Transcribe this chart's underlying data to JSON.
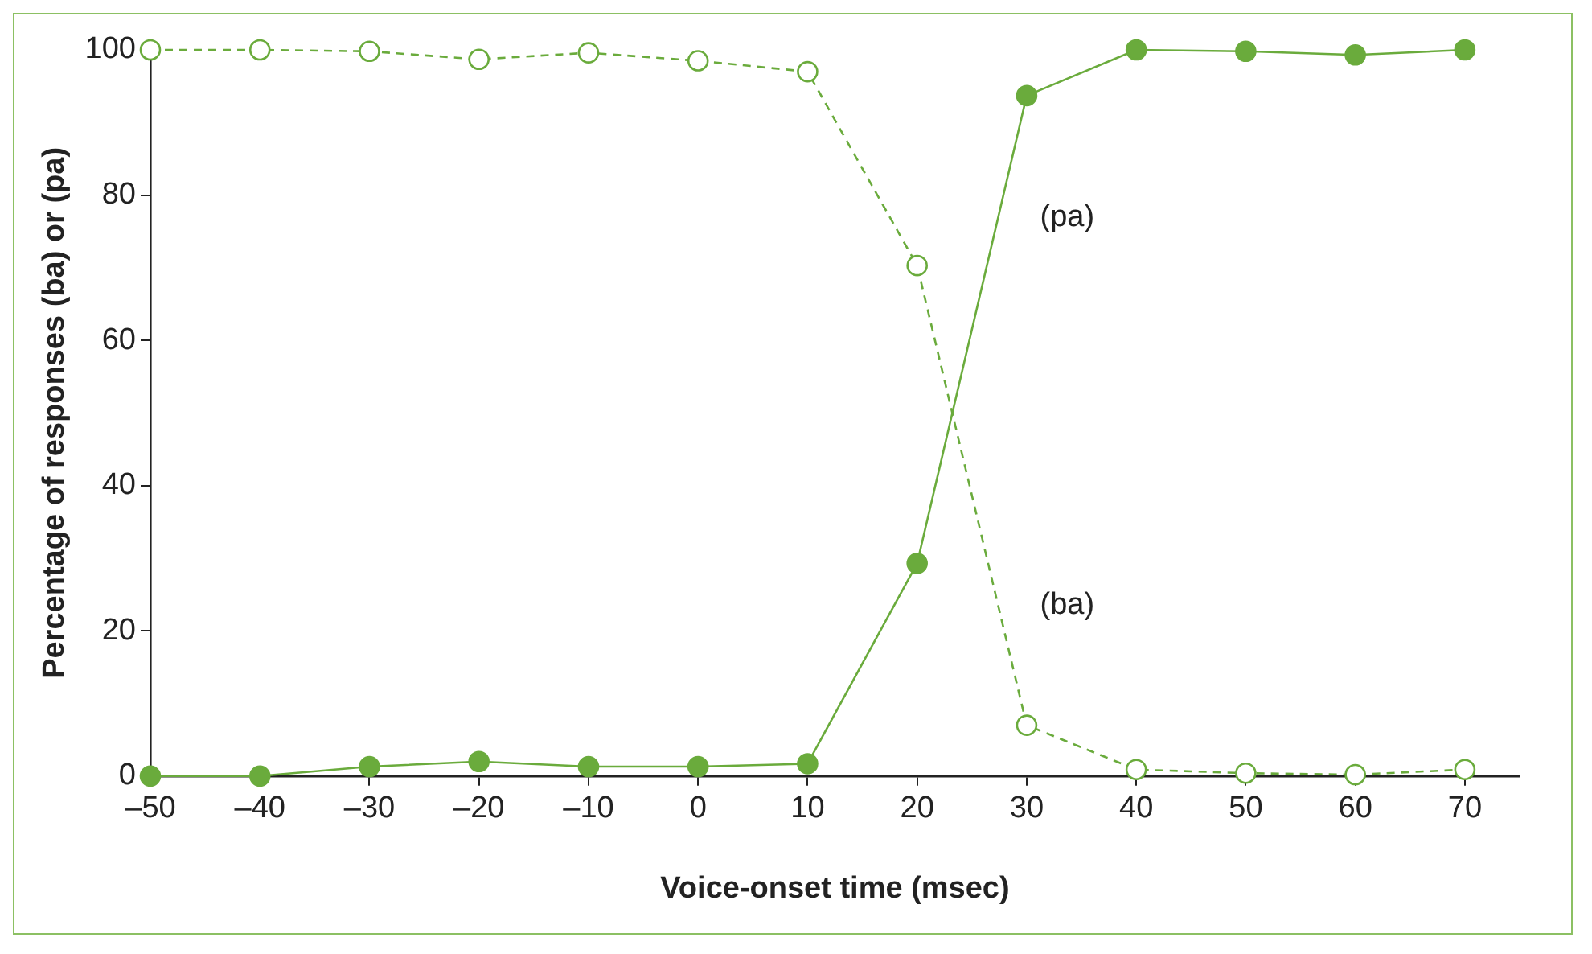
{
  "chart_data": {
    "type": "line",
    "xlabel": "Voice-onset time (msec)",
    "ylabel": "Percentage of responses (ba) or (pa)",
    "x": [
      -50,
      -40,
      -30,
      -20,
      -10,
      0,
      10,
      20,
      30,
      40,
      50,
      60,
      70
    ],
    "series": [
      {
        "name": "(ba)",
        "color": "#6aab3c",
        "line_style": "dashed",
        "values": [
          100,
          100,
          99.8,
          98.7,
          99.6,
          98.5,
          97,
          70.3,
          7,
          0.9,
          0.4,
          0.2,
          0.9
        ]
      },
      {
        "name": "(pa)",
        "color": "#6aab3c",
        "line_style": "solid",
        "values": [
          0,
          0,
          1.3,
          2,
          1.3,
          1.3,
          1.7,
          29.3,
          93.7,
          100,
          99.8,
          99.3,
          100
        ]
      }
    ],
    "xlim": [
      -50,
      75
    ],
    "xticks": [
      {
        "value": -50,
        "label": "–50"
      },
      {
        "value": -40,
        "label": "–40"
      },
      {
        "value": -30,
        "label": "–30"
      },
      {
        "value": -20,
        "label": "–20"
      },
      {
        "value": -10,
        "label": "–10"
      },
      0,
      10,
      20,
      30,
      40,
      50,
      60,
      70
    ],
    "ylim": [
      0,
      100
    ],
    "yticks": [
      0,
      20,
      40,
      60,
      80,
      100
    ],
    "grid": false,
    "legend": false,
    "marker": "circle"
  }
}
